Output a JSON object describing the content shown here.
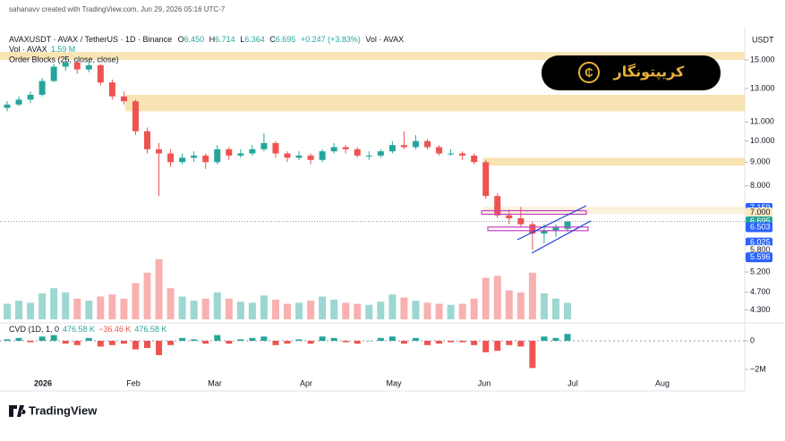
{
  "header": {
    "credit": "sahanavv created with TradingView.com, Jun 29, 2026 05:16 UTC-7",
    "symbol": "AVAXUSDT · AVAX / TetherUS · 1D · Binance",
    "ohlc": [
      "O",
      "6.450",
      "H",
      "6.714",
      "L",
      "6.364",
      "C",
      "6.695",
      "+0.247 (+3.83%)"
    ],
    "vol_label": "Vol · AVAX",
    "vol_value": "1.59 M",
    "indicator": "Order Blocks (25, close, close)",
    "cvd_label": "CVD (1D, 1, 0",
    "cvd_values": [
      "476.58 K",
      "−36.46 K",
      "476.58 K"
    ],
    "currency": "USDT",
    "logo": "کریپتونگار",
    "brand": "TradingView"
  },
  "chart_data": {
    "type": "candlestick",
    "log_scale": true,
    "up_color": "#26a69a",
    "down_color": "#ef5350",
    "candles": [
      [
        11.8,
        12.2,
        11.6,
        12.0
      ],
      [
        12.0,
        12.5,
        11.9,
        12.3
      ],
      [
        12.3,
        12.8,
        12.1,
        12.6
      ],
      [
        12.6,
        13.7,
        12.5,
        13.5
      ],
      [
        13.5,
        14.7,
        13.4,
        14.5
      ],
      [
        14.5,
        15.3,
        14.2,
        14.8
      ],
      [
        14.8,
        15.0,
        14.0,
        14.3
      ],
      [
        14.3,
        14.9,
        14.1,
        14.6
      ],
      [
        14.6,
        14.7,
        13.2,
        13.4
      ],
      [
        13.4,
        13.6,
        12.3,
        12.5
      ],
      [
        12.5,
        12.8,
        12.0,
        12.2
      ],
      [
        12.2,
        12.3,
        10.3,
        10.5
      ],
      [
        10.5,
        10.7,
        9.4,
        9.6
      ],
      [
        9.6,
        9.9,
        7.6,
        9.4
      ],
      [
        9.4,
        9.6,
        8.8,
        9.0
      ],
      [
        9.0,
        9.4,
        8.9,
        9.2
      ],
      [
        9.2,
        9.5,
        9.0,
        9.3
      ],
      [
        9.3,
        9.4,
        8.7,
        9.0
      ],
      [
        9.0,
        9.8,
        8.9,
        9.6
      ],
      [
        9.6,
        9.7,
        9.1,
        9.3
      ],
      [
        9.3,
        9.6,
        9.2,
        9.4
      ],
      [
        9.4,
        9.8,
        9.3,
        9.6
      ],
      [
        9.6,
        10.4,
        9.5,
        9.9
      ],
      [
        9.9,
        10.0,
        9.2,
        9.4
      ],
      [
        9.4,
        9.5,
        9.0,
        9.2
      ],
      [
        9.2,
        9.5,
        9.1,
        9.3
      ],
      [
        9.3,
        9.4,
        8.9,
        9.1
      ],
      [
        9.1,
        9.6,
        9.0,
        9.5
      ],
      [
        9.5,
        9.9,
        9.4,
        9.7
      ],
      [
        9.7,
        9.8,
        9.4,
        9.6
      ],
      [
        9.6,
        9.7,
        9.2,
        9.3
      ],
      [
        9.3,
        9.5,
        9.1,
        9.3
      ],
      [
        9.3,
        9.6,
        9.2,
        9.5
      ],
      [
        9.5,
        10.0,
        9.4,
        9.8
      ],
      [
        9.8,
        10.5,
        9.6,
        9.7
      ],
      [
        9.7,
        10.3,
        9.6,
        10.0
      ],
      [
        10.0,
        10.1,
        9.6,
        9.7
      ],
      [
        9.7,
        9.8,
        9.3,
        9.4
      ],
      [
        9.4,
        9.6,
        9.3,
        9.4
      ],
      [
        9.4,
        9.5,
        9.1,
        9.3
      ],
      [
        9.3,
        9.4,
        8.9,
        9.0
      ],
      [
        9.0,
        9.1,
        7.5,
        7.6
      ],
      [
        7.6,
        7.7,
        6.8,
        6.9
      ],
      [
        6.9,
        7.1,
        6.6,
        6.8
      ],
      [
        6.8,
        7.2,
        6.5,
        6.6
      ],
      [
        6.6,
        6.7,
        5.8,
        6.3
      ],
      [
        6.3,
        6.6,
        6.0,
        6.4
      ],
      [
        6.4,
        6.6,
        6.2,
        6.5
      ],
      [
        6.45,
        6.714,
        6.364,
        6.695
      ]
    ],
    "volume": [
      1.5,
      1.8,
      1.6,
      2.5,
      3.0,
      2.6,
      2.0,
      1.8,
      2.2,
      2.4,
      2.0,
      3.5,
      4.5,
      5.8,
      3.0,
      2.2,
      1.8,
      2.0,
      2.6,
      2.0,
      1.7,
      1.6,
      2.3,
      1.9,
      1.5,
      1.6,
      1.8,
      2.2,
      1.9,
      1.6,
      1.5,
      1.4,
      1.7,
      2.4,
      2.1,
      1.8,
      1.6,
      1.5,
      1.4,
      1.5,
      2.0,
      4.0,
      4.2,
      2.8,
      2.6,
      4.5,
      2.5,
      2.0,
      1.59
    ],
    "vlim": [
      0,
      7.5
    ],
    "cvd": [
      0.1,
      0.2,
      -0.1,
      0.3,
      0.4,
      -0.2,
      -0.3,
      0.2,
      -0.4,
      -0.3,
      -0.2,
      -0.6,
      -0.5,
      -1.0,
      -0.3,
      0.2,
      0.1,
      -0.2,
      0.4,
      -0.2,
      0.1,
      0.2,
      0.3,
      -0.3,
      -0.2,
      0.1,
      -0.2,
      0.3,
      0.2,
      -0.1,
      -0.2,
      0.0,
      0.2,
      0.3,
      -0.2,
      0.2,
      -0.3,
      -0.2,
      -0.1,
      -0.1,
      -0.3,
      -0.8,
      -0.7,
      -0.3,
      -0.4,
      -1.9,
      0.3,
      0.2,
      0.48
    ],
    "cvd_ylim": [
      -2.625,
      1.375
    ],
    "cvd_yticks": [
      0,
      {
        "value": -2,
        "label": "−2M"
      }
    ],
    "ylim": [
      4.05,
      17.3
    ],
    "yticks": [
      {
        "value": 15,
        "label": "15.000"
      },
      {
        "value": 13,
        "label": "13.000"
      },
      {
        "value": 11,
        "label": "11.000"
      },
      {
        "value": 10,
        "label": "10.000"
      },
      {
        "value": 9,
        "label": "9.000"
      },
      {
        "value": 8,
        "label": "8.000"
      },
      {
        "value": 5.2,
        "label": "5.200"
      },
      {
        "value": 4.7,
        "label": "4.700"
      },
      {
        "value": 4.3,
        "label": "4.300"
      }
    ],
    "price_tags": [
      {
        "value": 7.159,
        "label": "7.159",
        "color": "#2962ff"
      },
      {
        "value": 7.0,
        "label": "7.000",
        "color": "#fbe9c4"
      },
      {
        "value": 6.695,
        "label": "6.695",
        "color": "#26a69a"
      },
      {
        "value": 6.503,
        "label": "6.503",
        "color": "#2962ff"
      },
      {
        "value": 6.025,
        "label": "6.025",
        "color": "#2962ff"
      },
      {
        "value": 5.8,
        "label": "5.800",
        "color": "#ffffff"
      },
      {
        "value": 5.596,
        "label": "5.596",
        "color": "#2962ff"
      }
    ],
    "zones": [
      {
        "low": 15.0,
        "high": 15.6
      },
      {
        "low": 11.6,
        "high": 12.6
      },
      {
        "low": 8.85,
        "high": 9.2
      },
      {
        "low": 6.95,
        "high": 7.2
      }
    ],
    "zone_color": "#f5d99a",
    "order_blocks": [
      7.0,
      6.45
    ],
    "xticks": [
      "2026",
      "Feb",
      "Mar",
      "Apr",
      "May",
      "Jun",
      "Jul",
      "Aug"
    ]
  }
}
